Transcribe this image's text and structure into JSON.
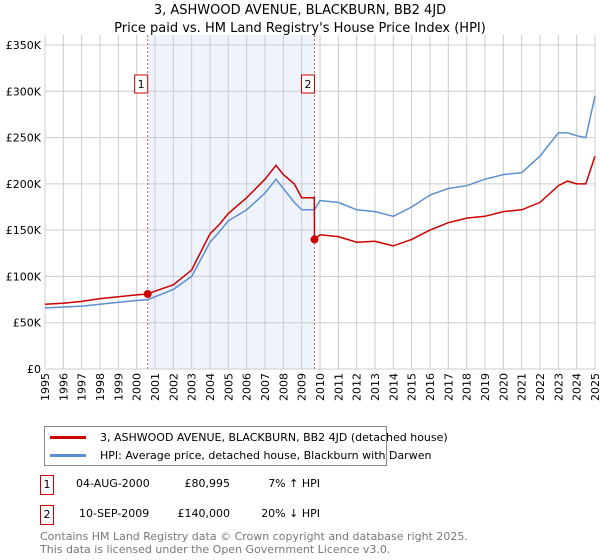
{
  "chart_data": {
    "type": "line",
    "title": "3, ASHWOOD AVENUE, BLACKBURN, BB2 4JD",
    "subtitle": "Price paid vs. HM Land Registry's House Price Index (HPI)",
    "xlim": [
      1995,
      2025
    ],
    "ylim": [
      0,
      350000
    ],
    "yticks": [
      {
        "v": 0,
        "label": "£0"
      },
      {
        "v": 50000,
        "label": "£50K"
      },
      {
        "v": 100000,
        "label": "£100K"
      },
      {
        "v": 150000,
        "label": "£150K"
      },
      {
        "v": 200000,
        "label": "£200K"
      },
      {
        "v": 250000,
        "label": "£250K"
      },
      {
        "v": 300000,
        "label": "£300K"
      },
      {
        "v": 350000,
        "label": "£350K"
      }
    ],
    "xticks": [
      "1995",
      "1996",
      "1997",
      "1998",
      "1999",
      "2000",
      "2001",
      "2002",
      "2003",
      "2004",
      "2005",
      "2006",
      "2007",
      "2008",
      "2009",
      "2010",
      "2011",
      "2012",
      "2013",
      "2014",
      "2015",
      "2016",
      "2017",
      "2018",
      "2019",
      "2020",
      "2021",
      "2022",
      "2023",
      "2024",
      "2025"
    ],
    "grid": true,
    "shaded_range": [
      2000.6,
      2009.7
    ],
    "series": [
      {
        "name": "3, ASHWOOD AVENUE, BLACKBURN, BB2 4JD (detached house)",
        "color": "#cc0000",
        "x": [
          1995,
          1996,
          1997,
          1998,
          1999,
          2000,
          2000.6,
          2001,
          2002,
          2003,
          2004,
          2004.5,
          2005,
          2006,
          2007,
          2007.6,
          2008,
          2008.6,
          2009,
          2009.69,
          2009.7,
          2010,
          2011,
          2012,
          2013,
          2014,
          2015,
          2016,
          2017,
          2018,
          2019,
          2020,
          2021,
          2022,
          2023,
          2023.5,
          2024,
          2024.5,
          2025
        ],
        "y": [
          70000,
          71000,
          73000,
          76000,
          78000,
          80000,
          80995,
          84000,
          91000,
          107000,
          146000,
          156000,
          168000,
          185000,
          205000,
          220000,
          210000,
          200000,
          185000,
          185000,
          140000,
          145000,
          143000,
          137000,
          138000,
          133000,
          140000,
          150000,
          158000,
          163000,
          165000,
          170000,
          172000,
          180000,
          198000,
          203000,
          200000,
          200000,
          230000
        ]
      },
      {
        "name": "HPI: Average price, detached house, Blackburn with Darwen",
        "color": "#5b8fd0",
        "x": [
          1995,
          1996,
          1997,
          1998,
          1999,
          2000,
          2000.6,
          2001,
          2002,
          2003,
          2004,
          2004.5,
          2005,
          2006,
          2007,
          2007.6,
          2008,
          2008.6,
          2009,
          2009.7,
          2010,
          2011,
          2012,
          2013,
          2014,
          2015,
          2016,
          2017,
          2018,
          2019,
          2020,
          2021,
          2022,
          2023,
          2023.5,
          2024,
          2024.5,
          2025
        ],
        "y": [
          66000,
          67000,
          68000,
          70000,
          72000,
          74000,
          75000,
          78000,
          86000,
          100000,
          137000,
          148000,
          160000,
          172000,
          190000,
          205000,
          195000,
          180000,
          172000,
          172000,
          182000,
          180000,
          172000,
          170000,
          165000,
          175000,
          188000,
          195000,
          198000,
          205000,
          210000,
          212000,
          230000,
          255000,
          255000,
          252000,
          250000,
          295000
        ]
      }
    ],
    "markers": [
      {
        "label": "1",
        "x": 2000.6,
        "y": 80995
      },
      {
        "label": "2",
        "x": 2009.7,
        "y": 140000
      }
    ]
  },
  "legend": {
    "red": "3, ASHWOOD AVENUE, BLACKBURN, BB2 4JD (detached house)",
    "blue": "HPI: Average price, detached house, Blackburn with Darwen"
  },
  "transactions": [
    {
      "num": "1",
      "date": "04-AUG-2000",
      "price": "£80,995",
      "hpi": "7% ↑ HPI"
    },
    {
      "num": "2",
      "date": "10-SEP-2009",
      "price": "£140,000",
      "hpi": "20% ↓ HPI"
    }
  ],
  "footer": {
    "line1": "Contains HM Land Registry data © Crown copyright and database right 2025.",
    "line2": "This data is licensed under the Open Government Licence v3.0."
  }
}
